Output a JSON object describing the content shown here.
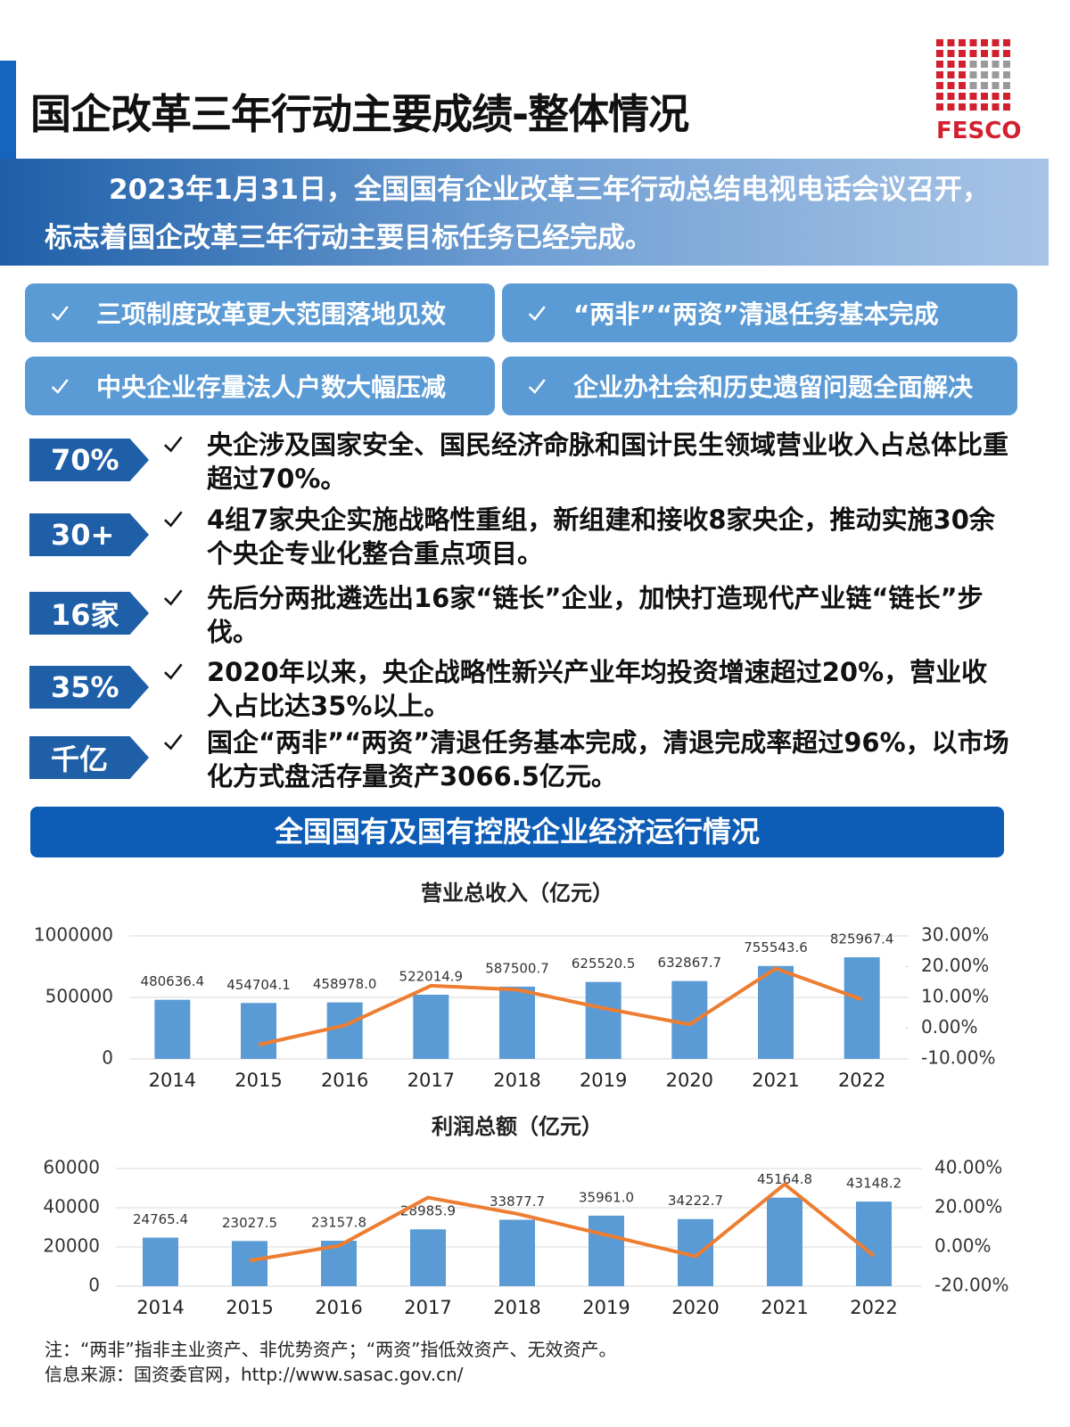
{
  "header": {
    "title": "国企改革三年行动主要成绩-整体情况",
    "logo": "FESCO"
  },
  "intro": "2023年1月31日，全国国有企业改革三年行动总结电视电话会议召开，标志着国企改革三年行动主要目标任务已经完成。",
  "highlights": [
    "三项制度改革更大范围落地见效",
    "“两非”“两资”清退任务基本完成",
    "中央企业存量法人户数大幅压减",
    "企业办社会和历史遗留问题全面解决"
  ],
  "stats": [
    {
      "badge": "70%",
      "text": "央企涉及国家安全、国民经济命脉和国计民生领域营业收入占总体比重超过70%。"
    },
    {
      "badge": "30+",
      "text": "4组7家央企实施战略性重组，新组建和接收8家央企，推动实施30余个央企专业化整合重点项目。"
    },
    {
      "badge": "16家",
      "text": "先后分两批遴选出16家“链长”企业，加快打造现代产业链“链长”步伐。"
    },
    {
      "badge": "35%",
      "text": "2020年以来，央企战略性新兴产业年均投资增速超过20%，营业收入占比达35%以上。"
    },
    {
      "badge": "千亿",
      "text": "国企“两非”“两资”清退任务基本完成，清退完成率超过96%，以市场化方式盘活存量资产3066.5亿元。"
    }
  ],
  "section_title": "全国国有及国有控股企业经济运行情况",
  "chart_data": [
    {
      "type": "bar",
      "title": "营业总收入（亿元）",
      "categories": [
        "2014",
        "2015",
        "2016",
        "2017",
        "2018",
        "2019",
        "2020",
        "2021",
        "2022"
      ],
      "series": [
        {
          "type": "bar",
          "color": "#5b9bd5",
          "values": [
            480636.4,
            454704.1,
            458978.0,
            522014.9,
            587500.7,
            625520.5,
            632867.7,
            755543.6,
            825967.4
          ],
          "value_labels": [
            "480636.4",
            "454704.1",
            "458978.0",
            "522014.9",
            "587500.7",
            "625520.5",
            "632867.7",
            "755543.6",
            "825967.4"
          ]
        },
        {
          "type": "line",
          "axis": "y2",
          "color": "#ed7d31",
          "values": [
            null,
            -5.4,
            0.9,
            13.8,
            12.5,
            6.5,
            1.2,
            19.4,
            9.3
          ]
        }
      ],
      "ylim": [
        0,
        1000000
      ],
      "yticks": [
        0,
        500000,
        1000000
      ],
      "y2lim": [
        -10,
        30
      ],
      "y2ticks": [
        {
          "value": -10,
          "label": "-10.00%"
        },
        {
          "value": 0,
          "label": "0.00%"
        },
        {
          "value": 10,
          "label": "10.00%"
        },
        {
          "value": 20,
          "label": "20.00%"
        },
        {
          "value": 30,
          "label": "30.00%"
        }
      ],
      "grid": true
    },
    {
      "type": "bar",
      "title": "利润总额（亿元）",
      "categories": [
        "2014",
        "2015",
        "2016",
        "2017",
        "2018",
        "2019",
        "2020",
        "2021",
        "2022"
      ],
      "series": [
        {
          "type": "bar",
          "color": "#5b9bd5",
          "values": [
            24765.4,
            23027.5,
            23157.8,
            28985.9,
            33877.7,
            35961.0,
            34222.7,
            45164.8,
            43148.2
          ],
          "value_labels": [
            "24765.4",
            "23027.5",
            "23157.8",
            "28985.9",
            "33877.7",
            "35961.0",
            "34222.7",
            "45164.8",
            "43148.2"
          ]
        },
        {
          "type": "line",
          "axis": "y2",
          "color": "#ed7d31",
          "values": [
            null,
            -7.0,
            0.6,
            25.2,
            16.9,
            6.1,
            -4.8,
            32.0,
            -4.5
          ]
        }
      ],
      "ylim": [
        0,
        60000
      ],
      "yticks": [
        0,
        20000,
        40000,
        60000
      ],
      "y2lim": [
        -20,
        40
      ],
      "y2ticks": [
        {
          "value": -20,
          "label": "-20.00%"
        },
        {
          "value": 0,
          "label": "0.00%"
        },
        {
          "value": 20,
          "label": "20.00%"
        },
        {
          "value": 40,
          "label": "40.00%"
        }
      ],
      "grid": true
    }
  ],
  "notes": [
    "注：“两非”指非主业资产、非优势资产；“两资”指低效资产、无效资产。",
    "信息来源：国资委官网，http://www.sasac.gov.cn/"
  ]
}
